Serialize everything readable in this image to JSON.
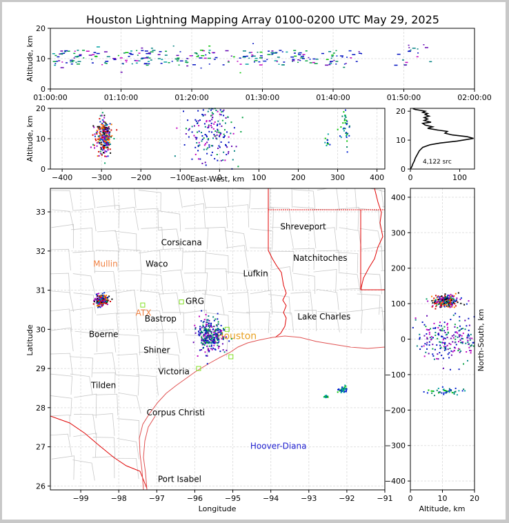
{
  "title": "Houston Lightning Mapping Array 0100-0200 UTC May 29, 2025",
  "colors": {
    "border": "#c8c8c8",
    "county": "#c8c8c8",
    "state": "#e00000",
    "coast": "#e05050",
    "cities": "#000000",
    "hdr_color": "#4040c0"
  },
  "chart_data": [
    {
      "panel": "time-altitude",
      "type": "scatter",
      "ylabel": "Altitude, km",
      "ylim": [
        0,
        20
      ],
      "yticks": [
        "0",
        "10",
        "20"
      ],
      "xticks": [
        "01:00:00",
        "01:10:00",
        "01:20:00",
        "01:30:00",
        "01:40:00",
        "01:50:00",
        "02:00:00"
      ],
      "x_range_minutes": [
        0,
        60
      ],
      "grid": true,
      "clusters": [
        {
          "x": [
            0,
            44
          ],
          "y": [
            8,
            13
          ],
          "n": 260,
          "density": "banded"
        },
        {
          "x": [
            48,
            54
          ],
          "y": [
            8,
            14
          ],
          "n": 18,
          "density": "sparse"
        }
      ]
    },
    {
      "panel": "east-west-altitude",
      "type": "scatter",
      "xlabel": "East-West, km",
      "ylabel": "Altitude, km",
      "xlim": [
        -430,
        420
      ],
      "ylim": [
        0,
        20
      ],
      "xticks": [
        "−400",
        "−300",
        "−200",
        "−100",
        "0",
        "100",
        "200",
        "300",
        "400"
      ],
      "yticks": [
        "0",
        "10",
        "20"
      ],
      "grid": true,
      "clusters": [
        {
          "cx": -293,
          "cy": 10.5,
          "sx": 10,
          "sy": 3,
          "n": 260,
          "density": "core"
        },
        {
          "cx": -25,
          "cy": 12,
          "sx": 35,
          "sy": 7,
          "n": 220,
          "density": "sparse"
        },
        {
          "cx": 320,
          "cy": 14,
          "sx": 7,
          "sy": 4,
          "n": 40,
          "density": "light"
        },
        {
          "cx": 275,
          "cy": 9,
          "sx": 4,
          "sy": 1,
          "n": 10,
          "density": "light"
        }
      ]
    },
    {
      "panel": "altitude-histogram",
      "type": "line",
      "xlim": [
        0,
        130
      ],
      "ylim": [
        0,
        21
      ],
      "xticks": [
        "0",
        "100"
      ],
      "yticks": [
        "0",
        "10",
        "20"
      ],
      "annotation": "4,122 src",
      "x": [
        0,
        3,
        5,
        8,
        10,
        14,
        18,
        25,
        40,
        60,
        95,
        110,
        128,
        115,
        85,
        70,
        75,
        55,
        35,
        45,
        30,
        25,
        42,
        28,
        35,
        28,
        38,
        30,
        35,
        25,
        30,
        20,
        10,
        5
      ],
      "y": [
        0,
        0.8,
        1.8,
        2.8,
        3.8,
        5,
        6.3,
        7.5,
        8.4,
        9,
        9.7,
        10.1,
        10.6,
        11.2,
        11.8,
        12.4,
        13,
        13.5,
        14.1,
        14.6,
        15.2,
        15.8,
        16.2,
        16.8,
        17.3,
        17.8,
        18.3,
        18.8,
        19.2,
        19.6,
        20,
        20.3,
        20.6,
        20.9
      ]
    },
    {
      "panel": "plan-view",
      "type": "scatter",
      "xlabel": "Longitude",
      "ylabel": "Latitude",
      "xlim": [
        -99.8,
        -91
      ],
      "ylim": [
        25.9,
        33.6
      ],
      "xticks": [
        -99,
        -98,
        -97,
        -96,
        -95,
        -94,
        -93,
        -92,
        -91
      ],
      "yticks": [
        26,
        27,
        28,
        29,
        30,
        31,
        32,
        33
      ],
      "xtick_labels": [
        "−99",
        "−98",
        "−97",
        "−96",
        "−95",
        "−94",
        "−93",
        "−92",
        "−91"
      ],
      "grid": true,
      "cities": [
        {
          "name": "Shreveport",
          "lon": -93.15,
          "lat": 32.55,
          "color": "#000000"
        },
        {
          "name": "Corsicana",
          "lon": -96.35,
          "lat": 32.15,
          "color": "#000000"
        },
        {
          "name": "Natchitoches",
          "lon": -92.7,
          "lat": 31.75,
          "color": "#000000"
        },
        {
          "name": "Mullin",
          "lon": -98.35,
          "lat": 31.6,
          "color": "#f08040"
        },
        {
          "name": "Waco",
          "lon": -97.0,
          "lat": 31.6,
          "color": "#000000"
        },
        {
          "name": "Lufkin",
          "lon": -94.4,
          "lat": 31.35,
          "color": "#000000"
        },
        {
          "name": "GRG",
          "lon": -96.0,
          "lat": 30.65,
          "color": "#000000"
        },
        {
          "name": "ATX",
          "lon": -97.35,
          "lat": 30.35,
          "color": "#f08040"
        },
        {
          "name": "Bastrop",
          "lon": -96.9,
          "lat": 30.2,
          "color": "#000000"
        },
        {
          "name": "Lake Charles",
          "lon": -92.6,
          "lat": 30.25,
          "color": "#000000"
        },
        {
          "name": "Boerne",
          "lon": -98.4,
          "lat": 29.8,
          "color": "#000000"
        },
        {
          "name": "Houston",
          "lon": -94.9,
          "lat": 29.75,
          "color": "#e8a020"
        },
        {
          "name": "Shiner",
          "lon": -97.0,
          "lat": 29.4,
          "color": "#000000"
        },
        {
          "name": "Victoria",
          "lon": -96.55,
          "lat": 28.85,
          "color": "#000000"
        },
        {
          "name": "Tilden",
          "lon": -98.4,
          "lat": 28.5,
          "color": "#000000"
        },
        {
          "name": "Corpus Christi",
          "lon": -96.5,
          "lat": 27.8,
          "color": "#000000"
        },
        {
          "name": "Hoover-Diana",
          "lon": -93.8,
          "lat": 26.95,
          "color": "#2020d0"
        },
        {
          "name": "Port Isabel",
          "lon": -96.4,
          "lat": 26.1,
          "color": "#000000"
        }
      ],
      "stations": [
        {
          "lon": -97.37,
          "lat": 30.62
        },
        {
          "lon": -96.35,
          "lat": 30.7
        },
        {
          "lon": -95.9,
          "lat": 29.0
        },
        {
          "lon": -95.05,
          "lat": 29.3
        },
        {
          "lon": -95.15,
          "lat": 30.0
        }
      ],
      "clusters": [
        {
          "lon": -98.45,
          "lat": 30.73,
          "slon": 0.08,
          "slat": 0.07,
          "n": 240,
          "density": "core"
        },
        {
          "lon": -95.6,
          "lat": 29.85,
          "slon": 0.2,
          "slat": 0.22,
          "n": 300,
          "density": "sparse"
        },
        {
          "lon": -92.1,
          "lat": 28.45,
          "slon": 0.05,
          "slat": 0.04,
          "n": 40,
          "density": "light"
        },
        {
          "lon": -92.55,
          "lat": 28.28,
          "slon": 0.04,
          "slat": 0.02,
          "n": 12,
          "density": "light"
        }
      ]
    },
    {
      "panel": "altitude-north-south",
      "type": "scatter",
      "xlabel": "Altitude, km",
      "ylabel": "North-South, km",
      "xlim": [
        0,
        20
      ],
      "ylim": [
        -425,
        425
      ],
      "xticks": [
        "0",
        "10",
        "20"
      ],
      "yticks": [
        "−400",
        "−300",
        "−200",
        "−100",
        "0",
        "100",
        "200",
        "300",
        "400"
      ],
      "grid": true,
      "clusters": [
        {
          "cx": 11,
          "cy": 107,
          "sx": 2,
          "sy": 8,
          "n": 260,
          "density": "core"
        },
        {
          "cx": 12,
          "cy": 0,
          "sx": 5,
          "sy": 28,
          "n": 220,
          "density": "sparse"
        },
        {
          "cx": 11,
          "cy": -147,
          "sx": 3,
          "sy": 5,
          "n": 45,
          "density": "light"
        }
      ]
    }
  ]
}
